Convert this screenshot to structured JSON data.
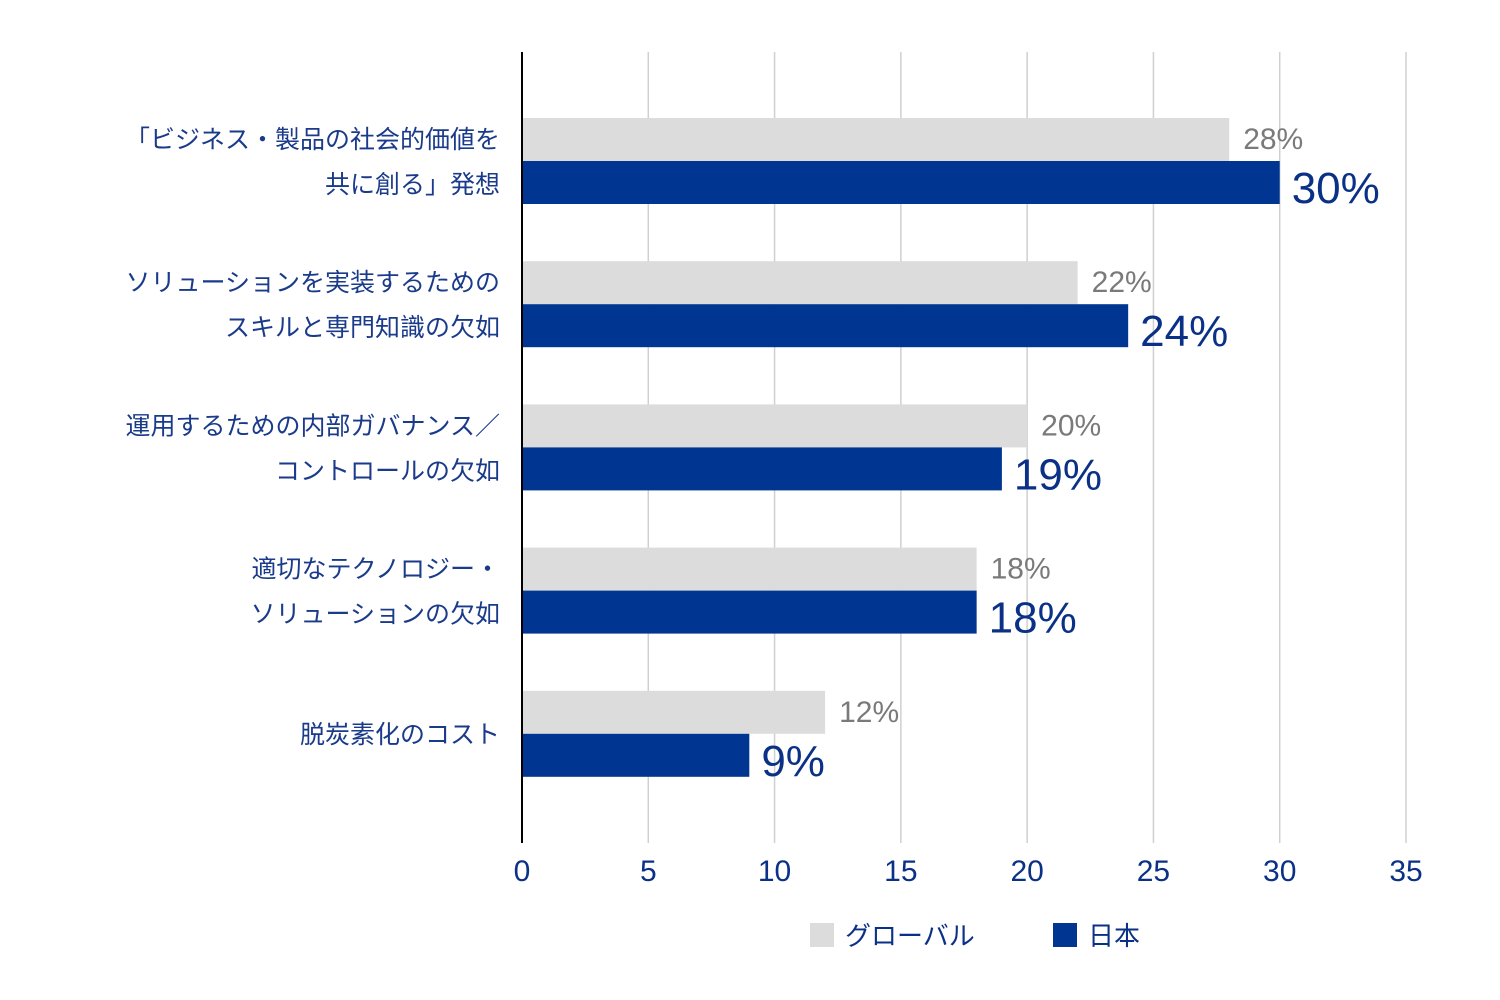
{
  "chart_data": {
    "type": "bar",
    "orientation": "horizontal",
    "categories": [
      [
        "「ビジネス・製品の社会的価値を",
        "共に創る」発想"
      ],
      [
        "ソリューションを実装するための",
        "スキルと専門知識の欠如"
      ],
      [
        "運用するための内部ガバナンス／",
        "コントロールの欠如"
      ],
      [
        "適切なテクノロジー・",
        "ソリューションの欠如"
      ],
      [
        "脱炭素化のコスト"
      ]
    ],
    "series": [
      {
        "name": "グローバル",
        "color": "#dcdcdc",
        "label_color": "#7a7a7a",
        "values": [
          28,
          22,
          20,
          18,
          12
        ],
        "labels": [
          "28%",
          "22%",
          "20%",
          "18%",
          "12%"
        ]
      },
      {
        "name": "日本",
        "color": "#003591",
        "label_color": "#0b3187",
        "values": [
          30,
          24,
          19,
          18,
          9
        ],
        "labels": [
          "30%",
          "24%",
          "19%",
          "18%",
          "9%"
        ]
      }
    ],
    "xlim": [
      0,
      35
    ],
    "xticks": [
      "0",
      "5",
      "10",
      "15",
      "20",
      "25",
      "30",
      "35"
    ],
    "grid": true,
    "legend_position": "bottom-center",
    "title": "",
    "xlabel": "",
    "ylabel": ""
  }
}
